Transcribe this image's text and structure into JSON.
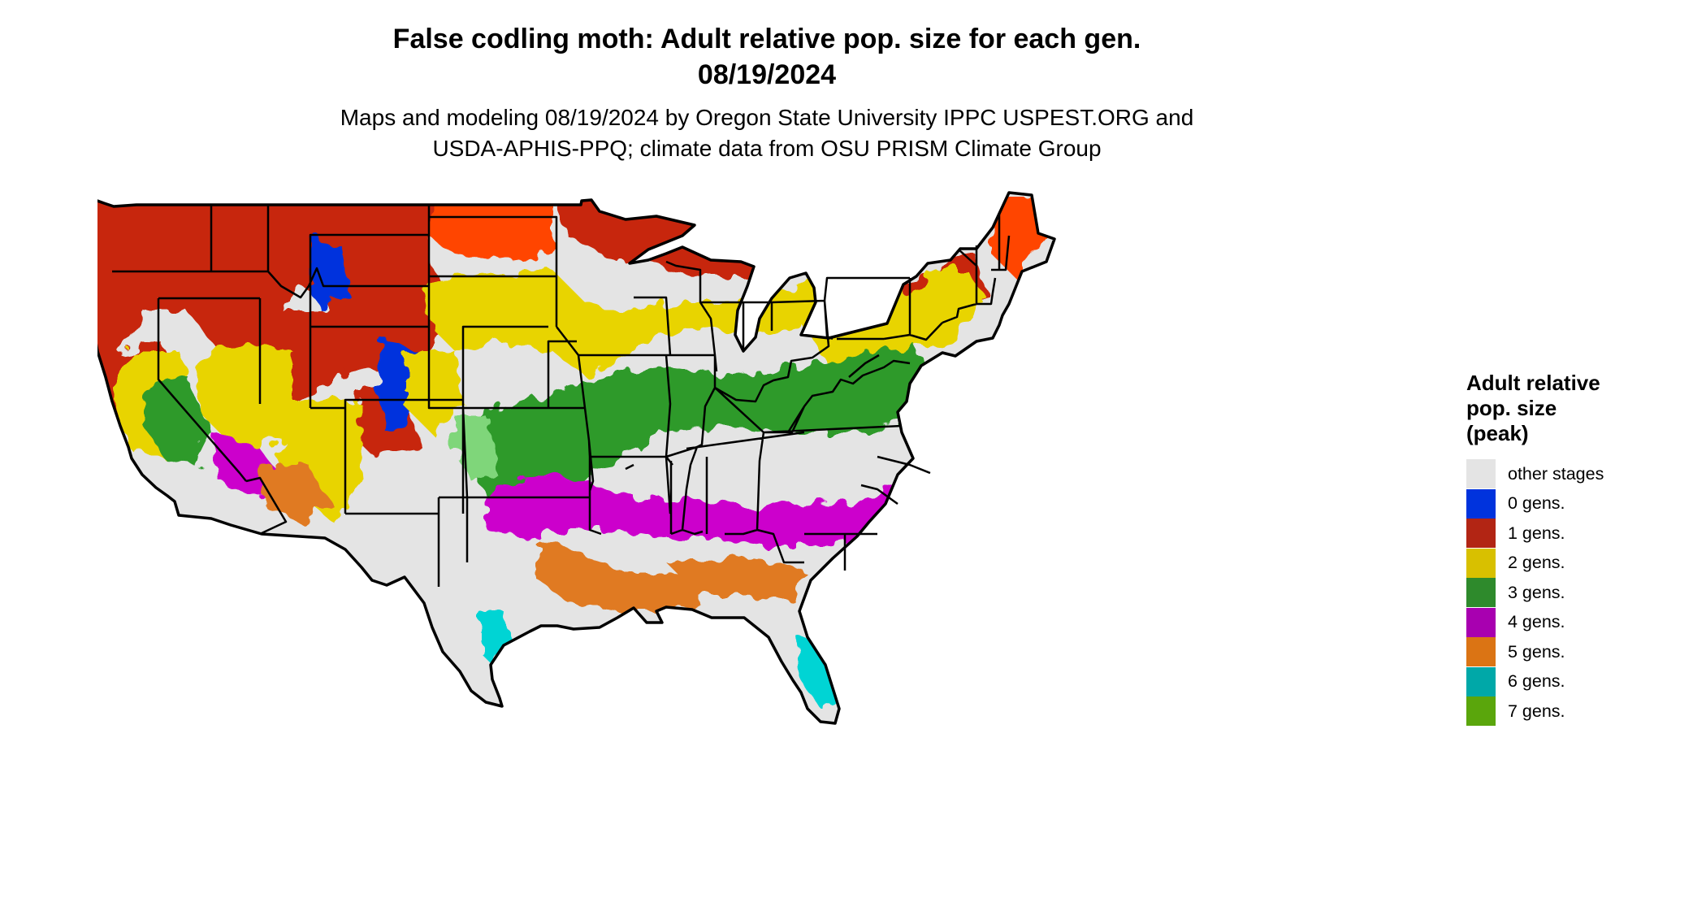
{
  "title_line1": "False codling moth: Adult relative pop. size for each gen.",
  "title_line2": "08/19/2024",
  "subtitle_line1": "Maps and modeling 08/19/2024 by Oregon State University IPPC USPEST.ORG and",
  "subtitle_line2": "USDA-APHIS-PPQ; climate data from OSU PRISM Climate Group",
  "legend": {
    "title_lines": [
      "Adult relative",
      "pop. size",
      "(peak)"
    ],
    "items": [
      {
        "label": "other stages",
        "color": "#e4e4e4",
        "key": "other-stages"
      },
      {
        "label": "0 gens.",
        "color": "#0033dd",
        "key": "0-gens"
      },
      {
        "label": "1 gens.",
        "color": "#b22514",
        "key": "1-gens"
      },
      {
        "label": "2 gens.",
        "color": "#d8c000",
        "key": "2-gens"
      },
      {
        "label": "3 gens.",
        "color": "#2e8a2c",
        "key": "3-gens"
      },
      {
        "label": "4 gens.",
        "color": "#a800b0",
        "key": "4-gens"
      },
      {
        "label": "5 gens.",
        "color": "#db7414",
        "key": "5-gens"
      },
      {
        "label": "6 gens.",
        "color": "#00a8a8",
        "key": "6-gens"
      },
      {
        "label": "7 gens.",
        "color": "#5aa60c",
        "key": "7-gens"
      }
    ]
  },
  "map_colors": {
    "background": "#e4e4e4",
    "gen1": "#c7280e",
    "gen1_bright": "#ff4400",
    "gen2": "#e8d400",
    "gen3": "#2e9a2c",
    "gen3_light": "#7fd67a",
    "gen4": "#cc00cc",
    "gen5": "#e07a20",
    "gen6": "#00d4d4",
    "gen0": "#0033dd",
    "border": "#000000"
  }
}
